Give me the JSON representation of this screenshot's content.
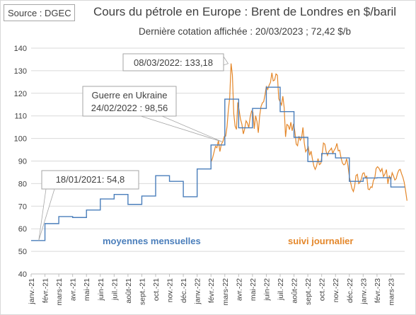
{
  "source_label": "Source : DGEC",
  "chart_data": {
    "type": "line",
    "title": "Cours du pétrole en Europe : Brent de Londres en $/baril",
    "subtitle": "Dernière cotation affichée : 20/03/2023 ; 72,42 $/b",
    "xlabel": "",
    "ylabel": "",
    "ylim": [
      40,
      140
    ],
    "yticks": [
      40,
      50,
      60,
      70,
      80,
      90,
      100,
      110,
      120,
      130,
      140
    ],
    "grid": true,
    "legend": "inline text inside plot",
    "x_tick_labels": [
      "janv.-21",
      "févr.-21",
      "mars-21",
      "avr.-21",
      "mai-21",
      "juin-21",
      "juil.-21",
      "août-21",
      "sept.-21",
      "oct.-21",
      "nov.-21",
      "déc.-21",
      "janv.-22",
      "févr.-22",
      "mars-22",
      "avr.-22",
      "mai-22",
      "juin-22",
      "juil.-22",
      "août-22",
      "sept.-22",
      "oct.-22",
      "nov.-22",
      "déc.-22",
      "janv.-23",
      "févr.-23",
      "mars-23"
    ],
    "series": [
      {
        "name": "moyennes mensuelles",
        "color": "#4a7ebb",
        "step": true,
        "months": [
          "janv.-21",
          "févr.-21",
          "mars-21",
          "avr.-21",
          "mai-21",
          "juin-21",
          "juil.-21",
          "août-21",
          "sept.-21",
          "oct.-21",
          "nov.-21",
          "déc.-21",
          "janv.-22",
          "févr.-22",
          "mars-22",
          "avr.-22",
          "mai-22",
          "juin-22",
          "juil.-22",
          "août-22",
          "sept.-22",
          "oct.-22",
          "nov.-22",
          "déc.-22",
          "janv.-23",
          "févr.-23",
          "mars-23"
        ],
        "values": [
          54.8,
          62.3,
          65.4,
          65.0,
          68.3,
          73.2,
          75.2,
          70.8,
          74.5,
          83.5,
          81.0,
          74.2,
          86.5,
          97.1,
          117.4,
          104.7,
          113.3,
          122.7,
          111.9,
          100.5,
          89.8,
          93.3,
          91.4,
          81.0,
          82.5,
          82.6,
          78.5
        ]
      },
      {
        "name": "suivi journalier",
        "color": "#e4872a",
        "start": "2022-02-01",
        "step_days": 3,
        "values": [
          89.5,
          91.2,
          93.8,
          96.5,
          95.9,
          99.1,
          94.2,
          97.5,
          98.6,
          100.9,
          101.0,
          105.2,
          112.8,
          118.0,
          133.2,
          128.0,
          111.0,
          105.5,
          104.0,
          116.0,
          112.5,
          108.6,
          106.3,
          102.0,
          104.2,
          107.8,
          106.8,
          104.7,
          109.5,
          112.1,
          111.6,
          104.3,
          110.1,
          107.5,
          102.5,
          110.0,
          114.1,
          115.7,
          116.3,
          119.3,
          122.9,
          121.7,
          123.6,
          124.8,
          129.1,
          125.5,
          125.9,
          128.6,
          128.0,
          117.6,
          116.2,
          114.8,
          118.7,
          113.5,
          100.7,
          106.2,
          105.7,
          103.9,
          107.2,
          103.4,
          106.5,
          103.0,
          97.5,
          96.8,
          101.0,
          99.2,
          100.3,
          104.9,
          98.0,
          94.1,
          95.0,
          96.2,
          92.5,
          94.4,
          90.9,
          87.8,
          86.3,
          87.8,
          91.1,
          88.4,
          88.9,
          92.8,
          98.0,
          97.5,
          94.2,
          92.5,
          94.3,
          94.9,
          95.7,
          93.4,
          94.8,
          95.7,
          97.8,
          94.5,
          94.8,
          91.5,
          89.1,
          88.3,
          88.7,
          91.0,
          88.0,
          83.0,
          80.3,
          77.7,
          76.5,
          78.9,
          83.6,
          84.1,
          80.0,
          80.6,
          82.2,
          84.5,
          84.8,
          82.7,
          83.3,
          77.6,
          77.3,
          78.6,
          78.3,
          81.4,
          82.4,
          86.7,
          87.5,
          86.8,
          85.3,
          86.6,
          83.1,
          84.3,
          86.2,
          79.9,
          83.6,
          81.6,
          84.8,
          83.4,
          81.6,
          82.2,
          84.5,
          86.0,
          86.3,
          84.4,
          82.8,
          80.5,
          76.8,
          72.4
        ]
      }
    ],
    "annotations": [
      {
        "text": "18/01/2021: 54,8",
        "month": "janv.-21",
        "value": 54.8
      },
      {
        "text": "Guerre en Ukraine\n24/02/2022 : 98,56",
        "month": "févr.-22",
        "value": 98.56
      },
      {
        "text": "08/03/2022: 133,18",
        "month": "mars-22",
        "value": 133.18
      }
    ],
    "inline_labels": [
      "moyennes mensuelles",
      "suivi journalier"
    ]
  }
}
